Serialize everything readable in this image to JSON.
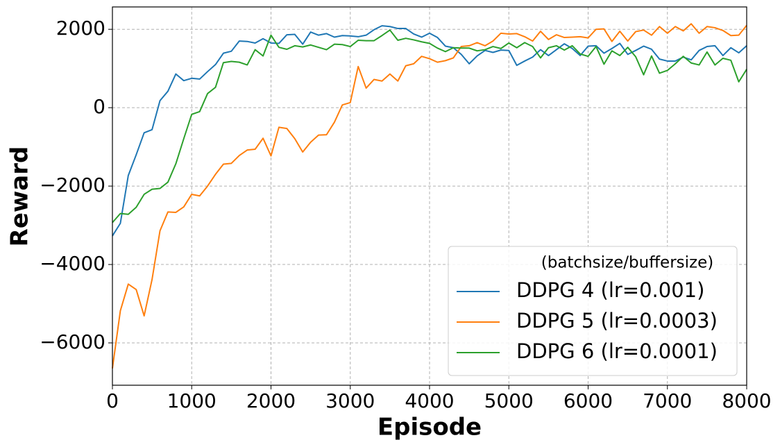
{
  "chart_data": {
    "type": "line",
    "xlabel": "Episode",
    "ylabel": "Reward",
    "legend_title": "(batchsize/buffersize)",
    "legend_loc": "lower right",
    "grid": true,
    "x": [
      0,
      100,
      200,
      300,
      400,
      500,
      600,
      700,
      800,
      900,
      1000,
      1100,
      1200,
      1300,
      1400,
      1500,
      1600,
      1700,
      1800,
      1900,
      2000,
      2100,
      2200,
      2300,
      2400,
      2500,
      2600,
      2700,
      2800,
      2900,
      3000,
      3100,
      3200,
      3300,
      3400,
      3500,
      3600,
      3700,
      3800,
      3900,
      4000,
      4100,
      4200,
      4300,
      4400,
      4500,
      4600,
      4700,
      4800,
      4900,
      5000,
      5100,
      5200,
      5300,
      5400,
      5500,
      5600,
      5700,
      5800,
      5900,
      6000,
      6100,
      6200,
      6300,
      6400,
      6500,
      6600,
      6700,
      6800,
      6900,
      7000,
      7100,
      7200,
      7300,
      7400,
      7500,
      7600,
      7700,
      7800,
      7900,
      8000
    ],
    "xlim": [
      0,
      8000
    ],
    "xticks": [
      0,
      1000,
      2000,
      3000,
      4000,
      5000,
      6000,
      7000,
      8000
    ],
    "ylim": [
      -7080,
      2570
    ],
    "yticks": [
      {
        "value": -6000,
        "label": "−6000"
      },
      {
        "value": -4000,
        "label": "−4000"
      },
      {
        "value": -2000,
        "label": "−2000"
      },
      0,
      2000
    ],
    "series": [
      {
        "name": "DDPG 4 (lr=0.001)",
        "color": "#1f77b4",
        "values": [
          -3270,
          -2950,
          -1730,
          -1200,
          -640,
          -560,
          180,
          420,
          860,
          690,
          750,
          730,
          920,
          1100,
          1390,
          1440,
          1700,
          1690,
          1650,
          1760,
          1650,
          1640,
          1860,
          1870,
          1620,
          1930,
          1850,
          1890,
          1800,
          1840,
          1830,
          1810,
          1850,
          1990,
          2090,
          2070,
          2020,
          2020,
          1880,
          1800,
          1900,
          1790,
          1570,
          1530,
          1360,
          1120,
          1320,
          1460,
          1410,
          1470,
          1460,
          1080,
          1190,
          1290,
          1480,
          1330,
          1480,
          1630,
          1510,
          1330,
          1570,
          1580,
          1390,
          1510,
          1640,
          1360,
          1460,
          1570,
          1490,
          1240,
          1190,
          1190,
          1290,
          1220,
          1460,
          1560,
          1580,
          1330,
          1530,
          1400,
          1580
        ]
      },
      {
        "name": "DDPG 5 (lr=0.0003)",
        "color": "#ff7f0e",
        "values": [
          -6650,
          -5180,
          -4500,
          -4640,
          -5310,
          -4380,
          -3140,
          -2660,
          -2670,
          -2530,
          -2210,
          -2250,
          -2000,
          -1700,
          -1440,
          -1420,
          -1220,
          -1080,
          -1060,
          -780,
          -1230,
          -500,
          -530,
          -790,
          -1130,
          -880,
          -700,
          -690,
          -370,
          70,
          130,
          1050,
          500,
          720,
          680,
          860,
          680,
          1070,
          1120,
          1310,
          1250,
          1160,
          1200,
          1270,
          1560,
          1580,
          1660,
          1580,
          1700,
          1900,
          1880,
          1890,
          1810,
          1700,
          1950,
          1740,
          1860,
          1790,
          1800,
          1810,
          1780,
          2000,
          2010,
          1690,
          1950,
          1700,
          1940,
          1980,
          1850,
          2070,
          1900,
          2070,
          1960,
          2140,
          1900,
          2070,
          2040,
          1970,
          1840,
          1850,
          2100
        ]
      },
      {
        "name": "DDPG 6 (lr=0.0001)",
        "color": "#2ca02c",
        "values": [
          -2930,
          -2700,
          -2720,
          -2540,
          -2210,
          -2080,
          -2060,
          -1900,
          -1430,
          -790,
          -170,
          -100,
          360,
          520,
          1150,
          1180,
          1160,
          1090,
          1480,
          1320,
          1850,
          1540,
          1490,
          1580,
          1550,
          1600,
          1540,
          1480,
          1620,
          1610,
          1560,
          1720,
          1710,
          1710,
          1840,
          1980,
          1720,
          1770,
          1730,
          1680,
          1640,
          1520,
          1430,
          1530,
          1520,
          1520,
          1450,
          1480,
          1560,
          1510,
          1650,
          1530,
          1660,
          1560,
          1270,
          1530,
          1580,
          1470,
          1580,
          1370,
          1310,
          1560,
          1110,
          1450,
          1330,
          1540,
          1300,
          840,
          1320,
          880,
          950,
          1120,
          1310,
          1140,
          1090,
          1420,
          1090,
          1260,
          1210,
          660,
          980
        ]
      }
    ]
  }
}
